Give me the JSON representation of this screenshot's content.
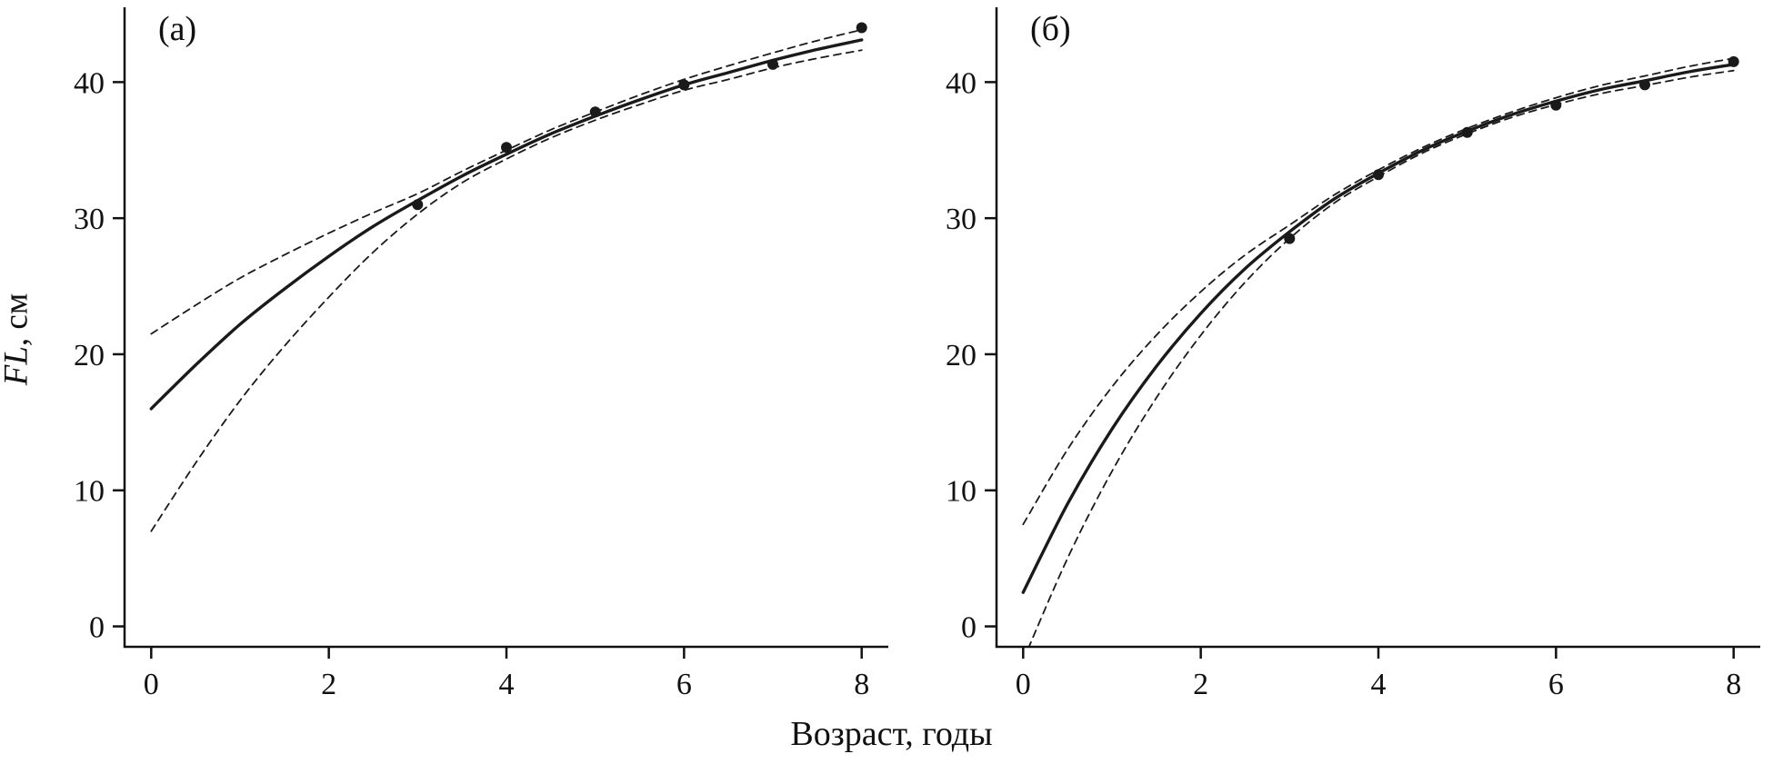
{
  "figure": {
    "xlabel": "Возраст, годы",
    "ylabel_italic": "FL",
    "ylabel_rest": ", см"
  },
  "chart_data": [
    {
      "type": "line",
      "panel_label": "(а)",
      "title": "",
      "xlabel": "Возраст, годы",
      "ylabel": "FL, см",
      "xlim": [
        -0.3,
        8.3
      ],
      "ylim": [
        -1.5,
        45.5
      ],
      "x_ticks": [
        0,
        2,
        4,
        6,
        8
      ],
      "y_ticks": [
        0,
        10,
        20,
        30,
        40
      ],
      "grid": false,
      "legend": null,
      "x_samples": [
        0,
        0.5,
        1,
        1.5,
        2,
        2.5,
        3,
        3.5,
        4,
        4.5,
        5,
        5.5,
        6,
        6.5,
        7,
        7.5,
        8
      ],
      "series": [
        {
          "name": "fitted-growth",
          "style": "solid",
          "y": [
            16.0,
            19.2,
            22.2,
            24.8,
            27.2,
            29.4,
            31.3,
            33.1,
            34.7,
            36.2,
            37.5,
            38.7,
            39.8,
            40.7,
            41.6,
            42.4,
            43.1
          ]
        },
        {
          "name": "ci-upper",
          "style": "dashed",
          "y": [
            21.5,
            23.6,
            25.6,
            27.3,
            28.9,
            30.4,
            31.8,
            33.45,
            35.0,
            36.5,
            37.8,
            39.05,
            40.2,
            41.2,
            42.15,
            43.05,
            43.85
          ]
        },
        {
          "name": "ci-lower",
          "style": "dashed",
          "y": [
            7.0,
            12.0,
            16.6,
            20.6,
            24.2,
            27.5,
            30.3,
            32.6,
            34.35,
            35.9,
            37.2,
            38.35,
            39.4,
            40.2,
            41.05,
            41.75,
            42.35
          ]
        },
        {
          "name": "observed-mean-length",
          "style": "points",
          "x": [
            3,
            4,
            5,
            6,
            7,
            8
          ],
          "y": [
            31.0,
            35.2,
            37.8,
            39.8,
            41.3,
            44.0
          ]
        }
      ]
    },
    {
      "type": "line",
      "panel_label": "(б)",
      "title": "",
      "xlabel": "Возраст, годы",
      "ylabel": "FL, см",
      "xlim": [
        -0.3,
        8.3
      ],
      "ylim": [
        -1.5,
        45.5
      ],
      "x_ticks": [
        0,
        2,
        4,
        6,
        8
      ],
      "y_ticks": [
        0,
        10,
        20,
        30,
        40
      ],
      "grid": false,
      "legend": null,
      "x_samples": [
        0,
        0.5,
        1,
        1.5,
        2,
        2.5,
        3,
        3.5,
        4,
        4.5,
        5,
        5.5,
        6,
        6.5,
        7,
        7.5,
        8
      ],
      "series": [
        {
          "name": "fitted-growth",
          "style": "solid",
          "y": [
            2.5,
            9.0,
            14.5,
            19.1,
            23.0,
            26.3,
            29.0,
            31.4,
            33.3,
            35.0,
            36.4,
            37.6,
            38.6,
            39.45,
            40.1,
            40.76,
            41.3
          ]
        },
        {
          "name": "ci-upper",
          "style": "dashed",
          "y": [
            7.5,
            13.0,
            17.6,
            21.4,
            24.6,
            27.3,
            29.5,
            31.7,
            33.55,
            35.2,
            36.6,
            37.8,
            38.85,
            39.75,
            40.45,
            41.16,
            41.75
          ]
        },
        {
          "name": "ci-lower",
          "style": "dashed",
          "y": [
            -2.5,
            5.0,
            11.4,
            16.8,
            21.4,
            25.3,
            28.5,
            31.1,
            33.05,
            34.8,
            36.2,
            37.4,
            38.35,
            39.15,
            39.75,
            40.36,
            40.85
          ]
        },
        {
          "name": "observed-mean-length",
          "style": "points",
          "x": [
            3,
            4,
            5,
            6,
            7,
            8
          ],
          "y": [
            28.5,
            33.2,
            36.3,
            38.3,
            39.8,
            41.5
          ]
        }
      ]
    }
  ]
}
